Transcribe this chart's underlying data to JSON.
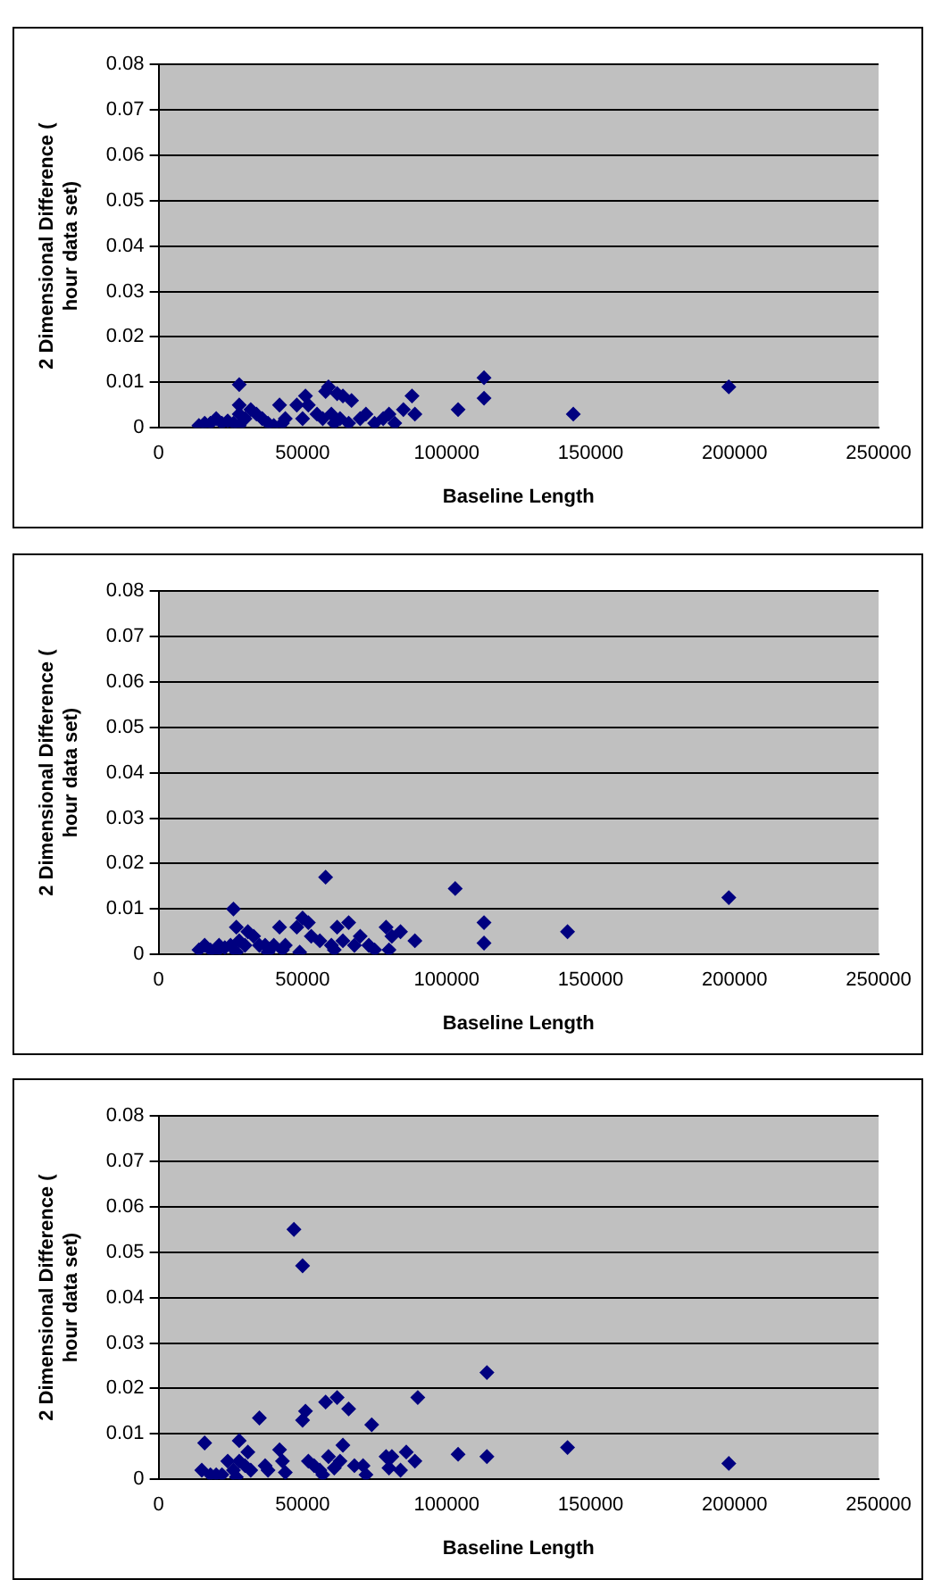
{
  "chart_data": [
    {
      "type": "scatter",
      "xlabel": "Baseline Length",
      "ylabel": "2 Dimensional Difference (\nhour data set)",
      "xlim": [
        0,
        250000
      ],
      "xticks": [
        0,
        50000,
        100000,
        150000,
        200000,
        250000
      ],
      "ylim": [
        0,
        0.08
      ],
      "yticks": [
        0,
        0.01,
        0.02,
        0.03,
        0.04,
        0.05,
        0.06,
        0.07,
        0.08
      ],
      "grid": "y",
      "marker": "diamond",
      "color": "#000080",
      "x": [
        14000,
        16000,
        18000,
        20000,
        22000,
        24000,
        26000,
        28000,
        28000,
        28000,
        28000,
        30000,
        32000,
        34000,
        36000,
        38000,
        40000,
        42000,
        43000,
        44000,
        48000,
        50000,
        51000,
        52000,
        55000,
        57000,
        58000,
        59000,
        60000,
        61000,
        62000,
        63000,
        64000,
        66000,
        67000,
        70000,
        72000,
        75000,
        78000,
        80000,
        82000,
        85000,
        88000,
        89000,
        104000,
        113000,
        113000,
        144000,
        198000
      ],
      "values": [
        0.0005,
        0.001,
        0.001,
        0.002,
        0.001,
        0.0015,
        0.001,
        0.0095,
        0.005,
        0.003,
        0.0005,
        0.002,
        0.004,
        0.003,
        0.002,
        0.001,
        0.0005,
        0.005,
        0.001,
        0.002,
        0.005,
        0.002,
        0.007,
        0.005,
        0.003,
        0.002,
        0.008,
        0.009,
        0.003,
        0.001,
        0.0075,
        0.002,
        0.007,
        0.001,
        0.006,
        0.002,
        0.003,
        0.001,
        0.002,
        0.003,
        0.001,
        0.004,
        0.007,
        0.003,
        0.004,
        0.011,
        0.0065,
        0.003,
        0.009
      ]
    },
    {
      "type": "scatter",
      "xlabel": "Baseline Length",
      "ylabel": "2 Dimensional Difference (\nhour data set)",
      "xlim": [
        0,
        250000
      ],
      "xticks": [
        0,
        50000,
        100000,
        150000,
        200000,
        250000
      ],
      "ylim": [
        0,
        0.08
      ],
      "yticks": [
        0,
        0.01,
        0.02,
        0.03,
        0.04,
        0.05,
        0.06,
        0.07,
        0.08
      ],
      "grid": "y",
      "marker": "diamond",
      "color": "#000080",
      "x": [
        14000,
        16000,
        18000,
        20000,
        21000,
        23000,
        25000,
        26000,
        27000,
        27000,
        28000,
        30000,
        31000,
        33000,
        35000,
        37000,
        38000,
        40000,
        42000,
        43000,
        44000,
        48000,
        49000,
        50000,
        52000,
        53000,
        56000,
        58000,
        60000,
        61000,
        62000,
        64000,
        66000,
        68000,
        70000,
        73000,
        75000,
        79000,
        80000,
        81000,
        84000,
        89000,
        103000,
        113000,
        113000,
        142000,
        198000
      ],
      "values": [
        0.001,
        0.002,
        0.001,
        0.0005,
        0.002,
        0.0015,
        0.002,
        0.01,
        0.0005,
        0.006,
        0.003,
        0.002,
        0.005,
        0.004,
        0.002,
        0.002,
        0.0005,
        0.002,
        0.006,
        0.001,
        0.002,
        0.006,
        0.0005,
        0.008,
        0.007,
        0.004,
        0.003,
        0.017,
        0.002,
        0.001,
        0.006,
        0.003,
        0.007,
        0.002,
        0.004,
        0.002,
        0.001,
        0.006,
        0.001,
        0.004,
        0.005,
        0.003,
        0.0145,
        0.007,
        0.0025,
        0.005,
        0.0125
      ]
    },
    {
      "type": "scatter",
      "xlabel": "Baseline Length",
      "ylabel": "2 Dimensional Difference (\nhour data set)",
      "xlim": [
        0,
        250000
      ],
      "xticks": [
        0,
        50000,
        100000,
        150000,
        200000,
        250000
      ],
      "ylim": [
        0,
        0.08
      ],
      "yticks": [
        0,
        0.01,
        0.02,
        0.03,
        0.04,
        0.05,
        0.06,
        0.07,
        0.08
      ],
      "grid": "y",
      "marker": "diamond",
      "color": "#000080",
      "x": [
        15000,
        16000,
        18000,
        20000,
        22000,
        24000,
        26000,
        27000,
        28000,
        28000,
        30000,
        31000,
        32000,
        35000,
        37000,
        38000,
        42000,
        43000,
        44000,
        47000,
        50000,
        50000,
        51000,
        52000,
        54000,
        56000,
        57000,
        58000,
        59000,
        61000,
        62000,
        63000,
        64000,
        66000,
        68000,
        71000,
        72000,
        74000,
        79000,
        80000,
        81000,
        84000,
        86000,
        89000,
        90000,
        104000,
        114000,
        114000,
        142000,
        198000
      ],
      "values": [
        0.002,
        0.008,
        0.001,
        0.001,
        0.001,
        0.004,
        0.002,
        0.0005,
        0.0085,
        0.004,
        0.003,
        0.006,
        0.002,
        0.0135,
        0.003,
        0.002,
        0.0065,
        0.004,
        0.0015,
        0.055,
        0.047,
        0.013,
        0.015,
        0.004,
        0.003,
        0.002,
        0.001,
        0.017,
        0.005,
        0.0025,
        0.018,
        0.004,
        0.0075,
        0.0155,
        0.003,
        0.003,
        0.001,
        0.012,
        0.005,
        0.0025,
        0.005,
        0.002,
        0.006,
        0.004,
        0.018,
        0.0055,
        0.0235,
        0.005,
        0.007,
        0.0035
      ]
    }
  ]
}
